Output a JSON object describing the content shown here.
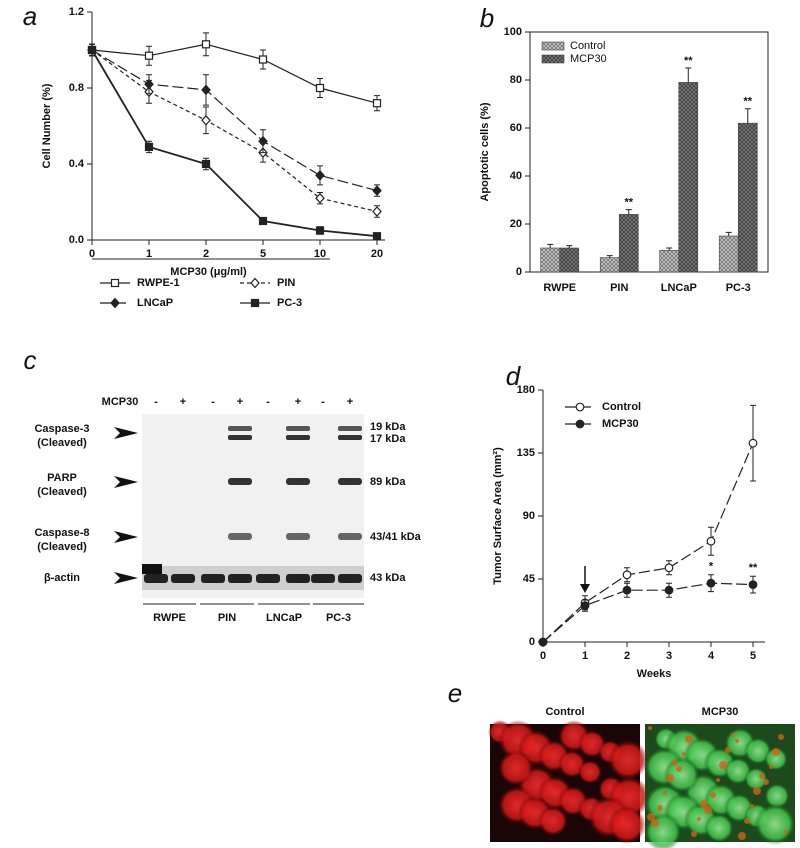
{
  "chart_data": [
    {
      "type": "line",
      "label": "a",
      "ylabel": "Cell Number (%)",
      "xlabel": "MCP30 (μg/ml)",
      "categories": [
        "0",
        "1",
        "2",
        "5",
        "10",
        "20"
      ],
      "ylim": [
        0,
        1.2
      ],
      "yticks": [
        {
          "value": 0,
          "label": "0.0"
        },
        0.4,
        0.8,
        1.2
      ],
      "legend": "below",
      "series": [
        {
          "name": "RWPE-1",
          "color": "#222",
          "dash": "solid",
          "marker": "square",
          "filled": false,
          "values": [
            1.0,
            0.97,
            1.03,
            0.95,
            0.8,
            0.72
          ],
          "errors": [
            0.03,
            0.05,
            0.06,
            0.05,
            0.05,
            0.04
          ]
        },
        {
          "name": "PIN",
          "color": "#222",
          "dash": "short",
          "marker": "diamond",
          "filled": false,
          "values": [
            1.0,
            0.78,
            0.63,
            0.46,
            0.22,
            0.15
          ],
          "errors": [
            0.03,
            0.06,
            0.07,
            0.05,
            0.03,
            0.03
          ]
        },
        {
          "name": "LNCaP",
          "color": "#222",
          "dash": "long",
          "marker": "diamond",
          "filled": true,
          "values": [
            1.0,
            0.82,
            0.79,
            0.52,
            0.34,
            0.26
          ],
          "errors": [
            0.03,
            0.05,
            0.08,
            0.06,
            0.05,
            0.03
          ]
        },
        {
          "name": "PC-3",
          "color": "#222",
          "dash": "solid",
          "marker": "square",
          "filled": true,
          "values": [
            1.0,
            0.49,
            0.4,
            0.1,
            0.05,
            0.02
          ],
          "errors": [
            0.03,
            0.03,
            0.03,
            0.01,
            0.02,
            0.01
          ]
        }
      ]
    },
    {
      "type": "bar",
      "label": "b",
      "ylabel": "Apoptotic cells (%)",
      "categories": [
        "RWPE",
        "PIN",
        "LNCaP",
        "PC-3"
      ],
      "ylim": [
        0,
        100
      ],
      "yticks": [
        0,
        20,
        40,
        60,
        80,
        100
      ],
      "legend": "upper left",
      "series": [
        {
          "name": "Control",
          "color": "#c8c8c8",
          "values": [
            10,
            6,
            9,
            15
          ],
          "errors": [
            1.5,
            0.8,
            1,
            1.5
          ]
        },
        {
          "name": "MCP30",
          "color": "#7a7a7a",
          "values": [
            10,
            24,
            79,
            62
          ],
          "errors": [
            1,
            2,
            6,
            6
          ]
        }
      ],
      "annotations": [
        {
          "text": "**",
          "category": "PIN",
          "series": "MCP30"
        },
        {
          "text": "**",
          "category": "LNCaP",
          "series": "MCP30"
        },
        {
          "text": "**",
          "category": "PC-3",
          "series": "MCP30"
        }
      ]
    },
    {
      "type": "line",
      "label": "d",
      "ylabel": "Tumor Surface Area (mm²)",
      "xlabel": "Weeks",
      "x": [
        0,
        1,
        2,
        3,
        4,
        5
      ],
      "xlim": [
        0,
        5
      ],
      "xticks": [
        0,
        1,
        2,
        3,
        4,
        5
      ],
      "ylim": [
        0,
        180
      ],
      "yticks": [
        0,
        45,
        90,
        135,
        180
      ],
      "legend": "upper left",
      "series": [
        {
          "name": "Control",
          "color": "#222",
          "dash": "long",
          "marker": "circle",
          "filled": false,
          "values": [
            0,
            28,
            48,
            53,
            72,
            142
          ],
          "errors": [
            0,
            5,
            5,
            5,
            10,
            27
          ]
        },
        {
          "name": "MCP30",
          "color": "#222",
          "dash": "long",
          "marker": "circle",
          "filled": true,
          "values": [
            0,
            26,
            37,
            37,
            42,
            41
          ],
          "errors": [
            0,
            4,
            5,
            5,
            6,
            6
          ]
        }
      ],
      "annotations": [
        {
          "text": "*",
          "x": 4,
          "series": "MCP30"
        },
        {
          "text": "**",
          "x": 5,
          "series": "MCP30"
        }
      ]
    }
  ],
  "blot": {
    "label": "c",
    "treatment_label": "MCP30",
    "treatments": [
      "-",
      "+",
      "-",
      "+",
      "-",
      "+",
      "-",
      "+"
    ],
    "rows": [
      {
        "name": "Caspase-3",
        "note": "(Cleaved)",
        "sizes": [
          "19 kDa",
          "17 kDa"
        ]
      },
      {
        "name": "PARP",
        "note": "(Cleaved)",
        "sizes": [
          "89 kDa"
        ]
      },
      {
        "name": "Caspase-8",
        "note": "(Cleaved)",
        "sizes": [
          "43/41 kDa"
        ]
      },
      {
        "name": "β-actin",
        "sizes": [
          "43 kDa"
        ]
      }
    ],
    "groups": [
      "RWPE",
      "PIN",
      "LNCaP",
      "PC-3"
    ]
  },
  "micrographs": {
    "label": "e",
    "panels": [
      "Control",
      "MCP30"
    ]
  }
}
